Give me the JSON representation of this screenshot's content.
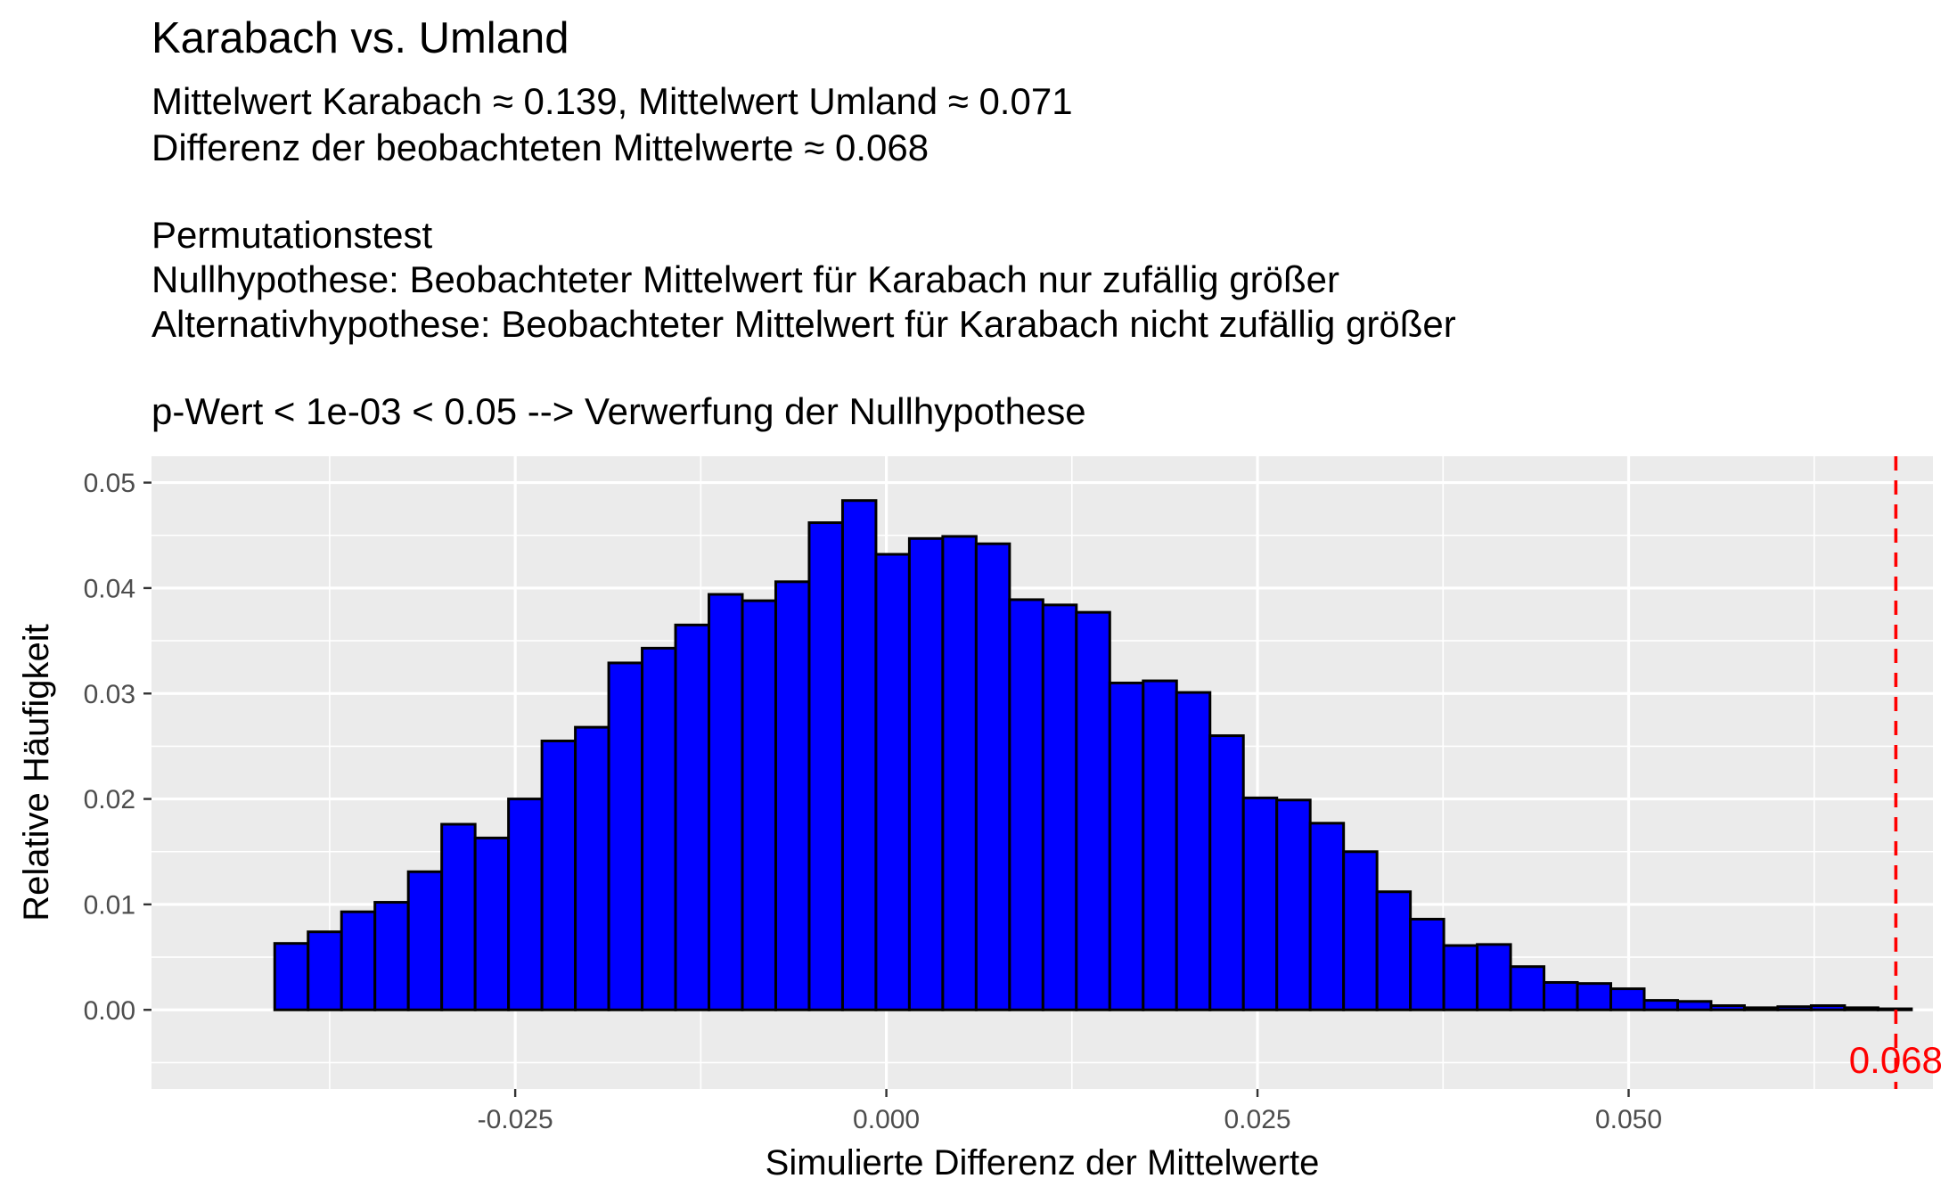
{
  "chart_data": {
    "type": "bar",
    "title": "Karabach vs. Umland",
    "subtitle_lines": [
      "Mittelwert Karabach ≈ 0.139, Mittelwert Umland ≈ 0.071",
      "Differenz der beobachteten Mittelwerte ≈ 0.068",
      "",
      "Permutationstest",
      "Nullhypothese: Beobachteter Mittelwert für Karabach nur zufällig größer",
      "Alternativhypothese: Beobachteter Mittelwert für Karabach nicht zufällig größer",
      "",
      "p-Wert < 1e-03 < 0.05 --> Verwerfung der Nullhypothese"
    ],
    "xlabel": "Simulierte Differenz der Mittelwerte",
    "ylabel": "Relative Häufigkeit",
    "xlim": [
      -0.0495,
      0.0705
    ],
    "ylim": [
      -0.0075,
      0.0525
    ],
    "x_ticks": [
      -0.025,
      0.0,
      0.025,
      0.05
    ],
    "x_tick_labels": [
      "-0.025",
      "0.000",
      "0.025",
      "0.050"
    ],
    "y_ticks": [
      0.0,
      0.01,
      0.02,
      0.03,
      0.04,
      0.05
    ],
    "y_tick_labels": [
      "0.00",
      "0.01",
      "0.02",
      "0.03",
      "0.04",
      "0.05"
    ],
    "grid": true,
    "bin_start": -0.0412,
    "bin_width": 0.00225,
    "values": [
      0.0063,
      0.0074,
      0.0093,
      0.0102,
      0.0131,
      0.0176,
      0.0163,
      0.02,
      0.0255,
      0.0268,
      0.0329,
      0.0343,
      0.0365,
      0.0394,
      0.0388,
      0.0406,
      0.0462,
      0.0483,
      0.0432,
      0.0447,
      0.0449,
      0.0442,
      0.0389,
      0.0384,
      0.0377,
      0.031,
      0.0312,
      0.0301,
      0.026,
      0.0201,
      0.0199,
      0.0177,
      0.015,
      0.0112,
      0.0086,
      0.0061,
      0.0062,
      0.0041,
      0.0026,
      0.0025,
      0.002,
      0.0009,
      0.0008,
      0.0004,
      0.0002,
      0.0003,
      0.0004,
      0.0002,
      0.0001
    ],
    "bar_color": "#0000ff",
    "bar_outline": "#000000",
    "reference_line": {
      "x": 0.068,
      "label": "0.068",
      "color": "#ff0000",
      "style": "dashed"
    }
  }
}
